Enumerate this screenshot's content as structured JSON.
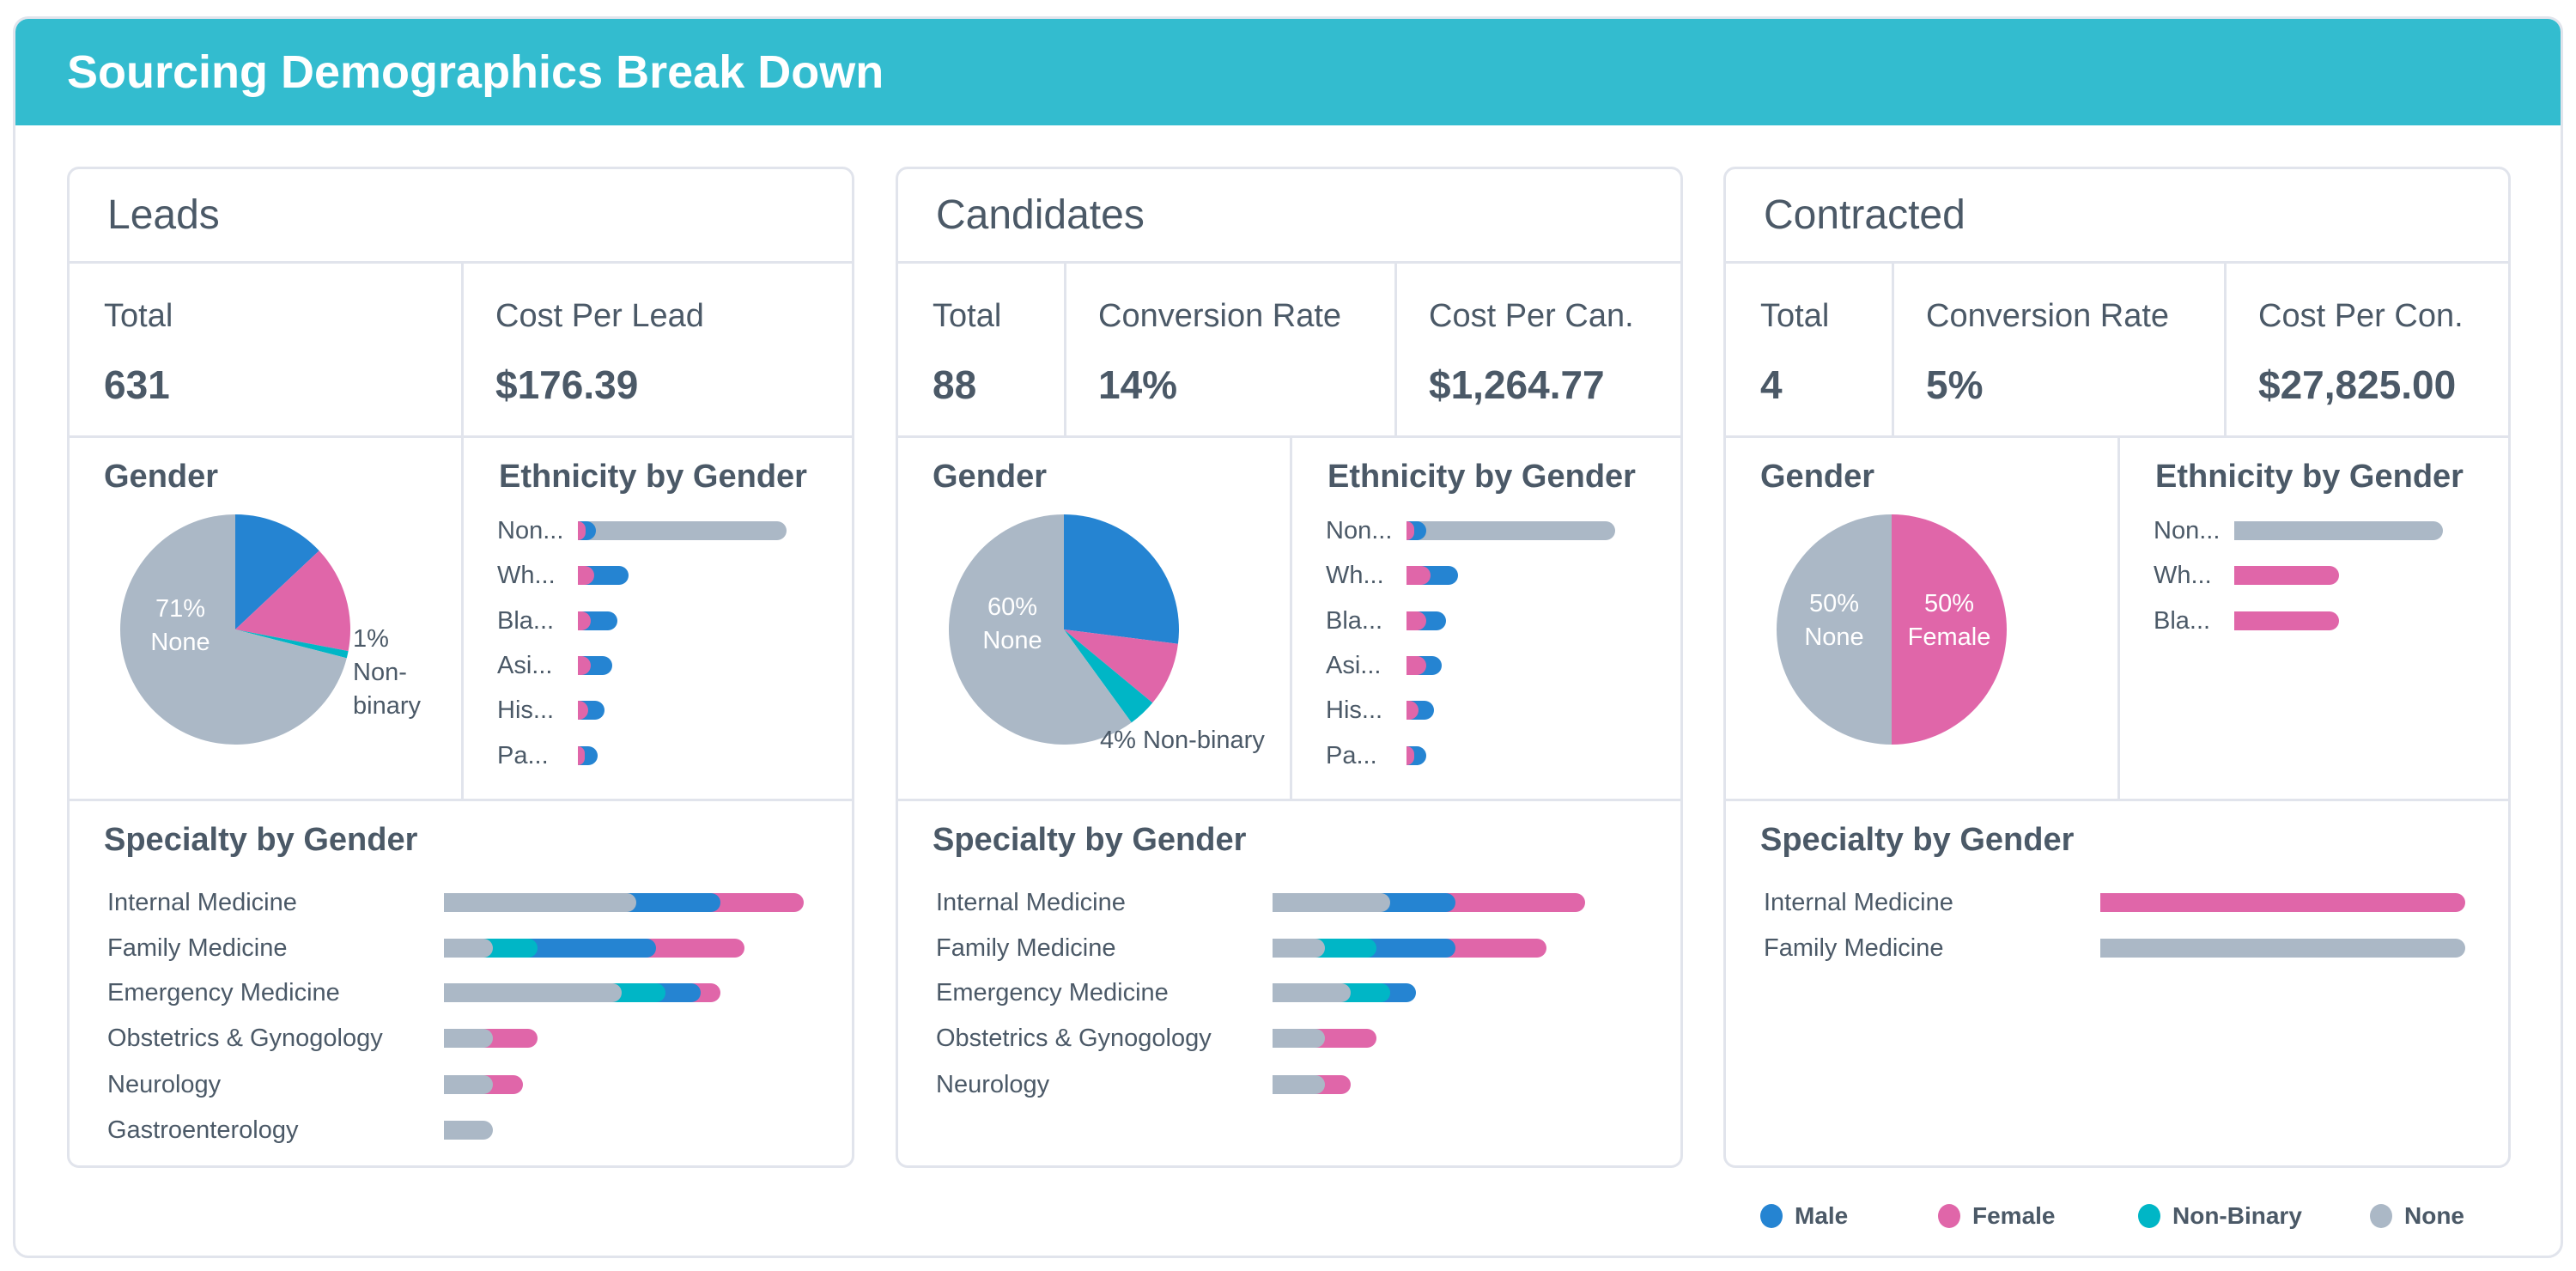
{
  "header": {
    "title": "Sourcing Demographics Break Down"
  },
  "colors": {
    "male": "#2584d2",
    "female": "#e066a9",
    "non_binary": "#00b6c6",
    "none": "#abb8c6",
    "header": "#33bccf",
    "text": "#4b5967"
  },
  "panels": [
    {
      "title": "Leads",
      "stats": [
        {
          "label": "Total",
          "value": "631"
        },
        {
          "label": "Cost Per Lead",
          "value": "$176.39"
        }
      ],
      "gender_heading": "Gender",
      "ethnicity_heading": "Ethnicity by Gender",
      "specialty_heading": "Specialty by Gender"
    },
    {
      "title": "Candidates",
      "stats": [
        {
          "label": "Total",
          "value": "88"
        },
        {
          "label": "Conversion Rate",
          "value": "14%"
        },
        {
          "label": "Cost Per Can.",
          "value": "$1,264.77"
        }
      ],
      "gender_heading": "Gender",
      "ethnicity_heading": "Ethnicity by Gender",
      "specialty_heading": "Specialty by Gender"
    },
    {
      "title": "Contracted",
      "stats": [
        {
          "label": "Total",
          "value": "4"
        },
        {
          "label": "Conversion Rate",
          "value": "5%"
        },
        {
          "label": "Cost Per Con.",
          "value": "$27,825.00"
        }
      ],
      "gender_heading": "Gender",
      "ethnicity_heading": "Ethnicity by Gender",
      "specialty_heading": "Specialty by Gender"
    }
  ],
  "legend": [
    {
      "label": "Male",
      "color": "#2584d2"
    },
    {
      "label": "Female",
      "color": "#e066a9"
    },
    {
      "label": "Non-Binary",
      "color": "#00b6c6"
    },
    {
      "label": "None",
      "color": "#abb8c6"
    }
  ],
  "chart_data": [
    {
      "type": "pie",
      "title": "Gender",
      "slices": [
        {
          "name": "Male",
          "value": 13
        },
        {
          "name": "Female",
          "value": 15
        },
        {
          "name": "Non-Binary",
          "value": 1
        },
        {
          "name": "None",
          "value": 71
        }
      ],
      "labels": [
        {
          "lines": [
            "71%",
            "None"
          ]
        },
        {
          "lines": [
            "1%",
            "Non-",
            "binary"
          ]
        }
      ]
    },
    {
      "type": "bar",
      "orientation": "horizontal",
      "stacked": true,
      "title": "Ethnicity by Gender",
      "categories": [
        "Non...",
        "Wh...",
        "Bla...",
        "Asi...",
        "His...",
        "Pa..."
      ],
      "series": [
        {
          "name": "Female",
          "values": [
            17,
            34,
            27,
            27,
            21,
            14
          ]
        },
        {
          "name": "Male",
          "values": [
            21,
            72,
            55,
            45,
            34,
            27
          ]
        },
        {
          "name": "None",
          "values": [
            397,
            0,
            0,
            0,
            0,
            0
          ]
        }
      ],
      "xlim": [
        0,
        435
      ]
    },
    {
      "type": "bar",
      "orientation": "horizontal",
      "stacked": true,
      "title": "Specialty by Gender",
      "categories": [
        "Internal Medicine",
        "Family Medicine",
        "Emergency Medicine",
        "Obstetrics & Gynogology",
        "Neurology",
        "Gastroenterology"
      ],
      "series": [
        {
          "name": "None",
          "values": [
            39,
            10,
            36,
            10,
            10,
            10
          ]
        },
        {
          "name": "Non-Binary",
          "values": [
            0,
            9,
            9,
            0,
            0,
            0
          ]
        },
        {
          "name": "Male",
          "values": [
            17,
            24,
            7,
            0,
            0,
            0
          ]
        },
        {
          "name": "Female",
          "values": [
            17,
            18,
            4,
            9,
            6,
            0
          ]
        }
      ],
      "xlim": [
        0,
        74
      ]
    },
    {
      "type": "pie",
      "title": "Gender",
      "slices": [
        {
          "name": "Male",
          "value": 27
        },
        {
          "name": "Female",
          "value": 9
        },
        {
          "name": "Non-Binary",
          "value": 4
        },
        {
          "name": "None",
          "value": 60
        }
      ],
      "labels": [
        {
          "lines": [
            "60%",
            "None"
          ]
        },
        {
          "lines": [
            "4% Non-binary"
          ]
        }
      ]
    },
    {
      "type": "bar",
      "orientation": "horizontal",
      "stacked": true,
      "title": "Ethnicity by Gender",
      "categories": [
        "Non...",
        "Wh...",
        "Bla...",
        "Asi...",
        "His...",
        "Pa..."
      ],
      "series": [
        {
          "name": "Female",
          "values": [
            2,
            6,
            5,
            5,
            3,
            2
          ]
        },
        {
          "name": "Male",
          "values": [
            3,
            7,
            5,
            4,
            4,
            3
          ]
        },
        {
          "name": "None",
          "values": [
            48,
            0,
            0,
            0,
            0,
            0
          ]
        }
      ],
      "xlim": [
        0,
        53
      ]
    },
    {
      "type": "bar",
      "orientation": "horizontal",
      "stacked": true,
      "title": "Specialty by Gender",
      "categories": [
        "Internal Medicine",
        "Family Medicine",
        "Emergency Medicine",
        "Obstetrics & Gynogology",
        "Neurology"
      ],
      "series": [
        {
          "name": "None",
          "values": [
            9,
            4,
            6,
            4,
            4
          ]
        },
        {
          "name": "Non-Binary",
          "values": [
            0,
            4,
            3,
            0,
            0
          ]
        },
        {
          "name": "Male",
          "values": [
            5,
            6,
            2,
            0,
            0
          ]
        },
        {
          "name": "Female",
          "values": [
            10,
            7,
            0,
            4,
            2
          ]
        }
      ],
      "xlim": [
        0,
        28
      ]
    },
    {
      "type": "pie",
      "title": "Gender",
      "slices": [
        {
          "name": "Male",
          "value": 0
        },
        {
          "name": "Female",
          "value": 50
        },
        {
          "name": "Non-Binary",
          "value": 0
        },
        {
          "name": "None",
          "value": 50
        }
      ],
      "labels": [
        {
          "lines": [
            "50%",
            "None"
          ]
        },
        {
          "lines": [
            "50%",
            "Female"
          ]
        }
      ]
    },
    {
      "type": "bar",
      "orientation": "horizontal",
      "stacked": true,
      "title": "Ethnicity by Gender",
      "categories": [
        "Non...",
        "Wh...",
        "Bla..."
      ],
      "series": [
        {
          "name": "Female",
          "values": [
            0,
            1,
            1
          ]
        },
        {
          "name": "Male",
          "values": [
            0,
            0,
            0
          ]
        },
        {
          "name": "None",
          "values": [
            2,
            0,
            0
          ]
        }
      ],
      "xlim": [
        0,
        2
      ]
    },
    {
      "type": "bar",
      "orientation": "horizontal",
      "stacked": true,
      "title": "Specialty by Gender",
      "categories": [
        "Internal Medicine",
        "Family Medicine"
      ],
      "series": [
        {
          "name": "None",
          "values": [
            0,
            1
          ]
        },
        {
          "name": "Non-Binary",
          "values": [
            0,
            0
          ]
        },
        {
          "name": "Male",
          "values": [
            0,
            0
          ]
        },
        {
          "name": "Female",
          "values": [
            1,
            0
          ]
        }
      ],
      "xlim": [
        0,
        1
      ]
    }
  ]
}
